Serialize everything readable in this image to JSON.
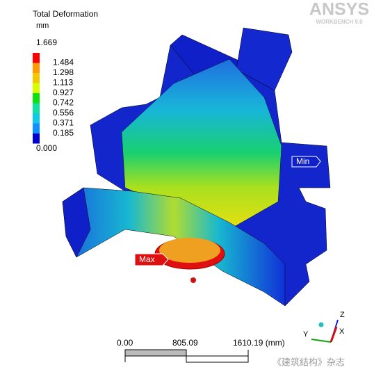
{
  "brand": {
    "name": "ANSYS",
    "product": "WORKBENCH 9.0"
  },
  "legend": {
    "title": "Total Deformation",
    "unit": "mm",
    "max": "1.669",
    "labels": [
      "1.484",
      "1.298",
      "1.113",
      "0.927",
      "0.742",
      "0.556",
      "0.371",
      "0.185"
    ],
    "min": "0.000"
  },
  "probes": {
    "min": "Min",
    "max": "Max"
  },
  "scale_bar": {
    "labels": [
      "0.00",
      "805.09",
      "1610.19 (mm)"
    ]
  },
  "triad": {
    "z": "Z",
    "y": "Y",
    "x": "X"
  },
  "watermark": "《建筑结构》杂志"
}
